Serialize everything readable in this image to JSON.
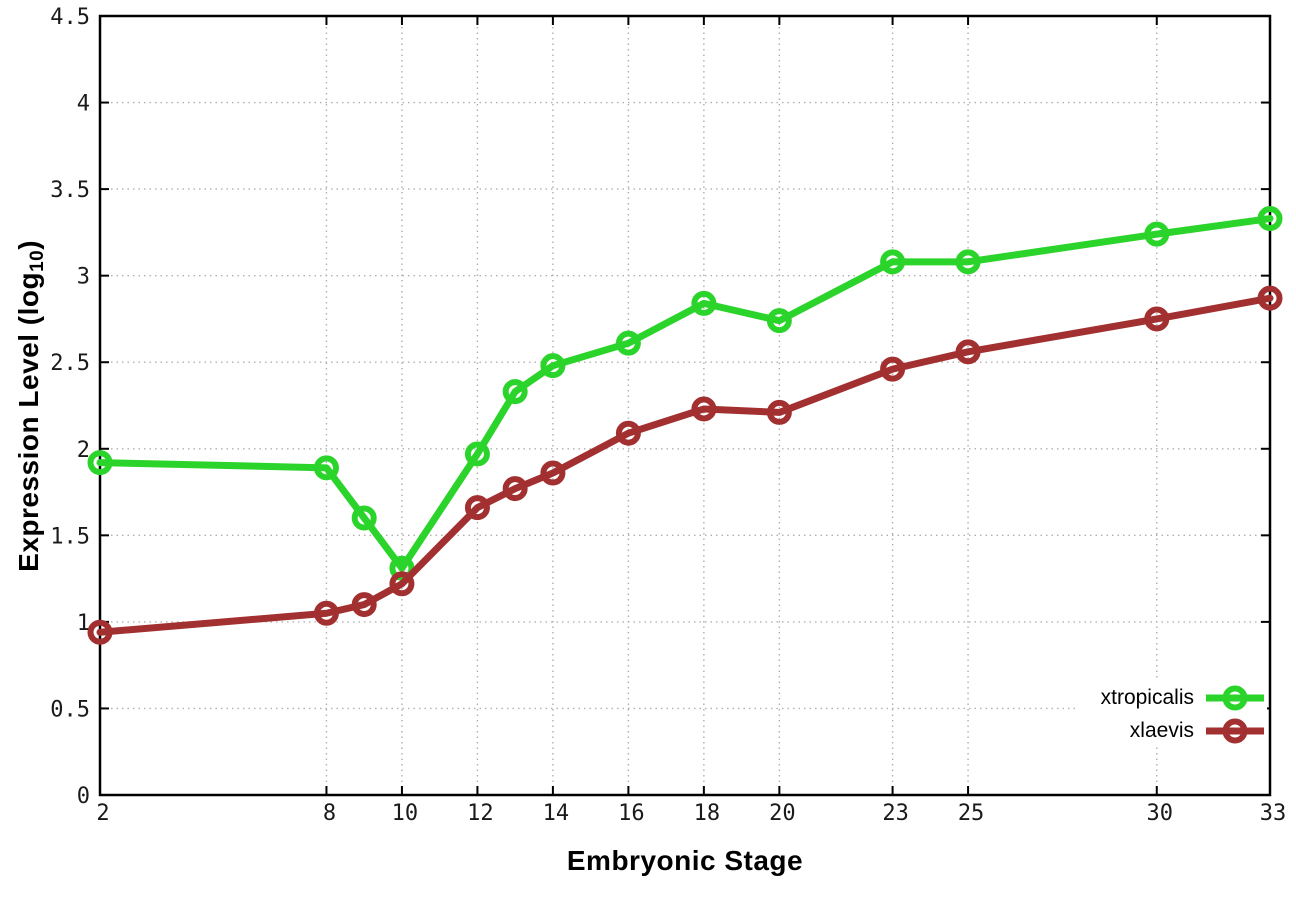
{
  "axes": {
    "x_title": "Embryonic Stage",
    "y_title_pre": "Expression Level (log",
    "y_title_sub": "10",
    "y_title_post": ")"
  },
  "chart_data": {
    "type": "line",
    "title": "",
    "xlabel": "Embryonic Stage",
    "ylabel": "Expression Level (log10)",
    "x": [
      2,
      8,
      9,
      10,
      12,
      13,
      14,
      16,
      18,
      20,
      23,
      25,
      30,
      33
    ],
    "series": [
      {
        "name": "xtropicalis",
        "color": "#2bd42b",
        "values": [
          1.92,
          1.89,
          1.6,
          1.31,
          1.97,
          2.33,
          2.48,
          2.61,
          2.84,
          2.74,
          3.08,
          3.08,
          3.24,
          3.33
        ]
      },
      {
        "name": "xlaevis",
        "color": "#a33030",
        "values": [
          0.94,
          1.05,
          1.1,
          1.22,
          1.66,
          1.77,
          1.86,
          2.09,
          2.23,
          2.21,
          2.46,
          2.56,
          2.75,
          2.87
        ]
      }
    ],
    "xlim": [
      2,
      33
    ],
    "ylim": [
      0,
      4.5
    ],
    "x_ticks": [
      2,
      8,
      10,
      12,
      14,
      16,
      18,
      20,
      23,
      25,
      30,
      33
    ],
    "y_ticks": [
      0,
      0.5,
      1,
      1.5,
      2,
      2.5,
      3,
      3.5,
      4,
      4.5
    ],
    "grid": true,
    "legend_position": "bottom-right",
    "marker": "open-circle"
  },
  "style": {
    "grid_color": "#b0b0b0",
    "axis_color": "#000000",
    "tick_label_color": "#1a1a1a"
  }
}
